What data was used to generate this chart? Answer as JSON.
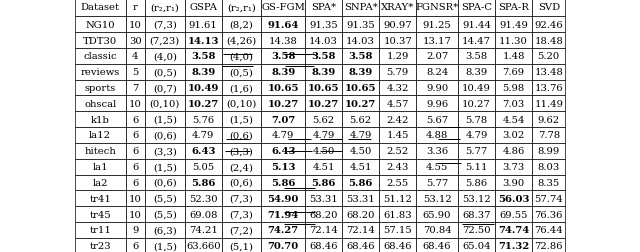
{
  "columns": [
    "Dataset",
    "r",
    "(r₂,r₁)",
    "GSPA",
    "(r₂,r₁)",
    "GS-FGM",
    "SPA*",
    "SNPA*",
    "XRAY*",
    "FGNSR*",
    "SPA-C",
    "SPA-R",
    "SVD"
  ],
  "rows": [
    [
      "NG10",
      "10",
      "(7,3)",
      "91.61",
      "(8,2)",
      "91.64",
      "91.35",
      "91.35",
      "90.97",
      "91.25",
      "91.44",
      "91.49",
      "92.46"
    ],
    [
      "TDT30",
      "30",
      "(7,23)",
      "14.13",
      "(4,26)",
      "14.38",
      "14.03",
      "14.03",
      "10.37",
      "13.17",
      "14.47",
      "11.30",
      "18.48"
    ],
    [
      "classic",
      "4",
      "(4,0)",
      "3.58",
      "(4,0)",
      "3.58",
      "3.58",
      "3.58",
      "1.29",
      "2.07",
      "3.58",
      "1.48",
      "5.20"
    ],
    [
      "reviews",
      "5",
      "(0,5)",
      "8.39",
      "(0,5)",
      "8.39",
      "8.39",
      "8.39",
      "5.79",
      "8.24",
      "8.39",
      "7.69",
      "13.48"
    ],
    [
      "sports",
      "7",
      "(0,7)",
      "10.49",
      "(1,6)",
      "10.65",
      "10.65",
      "10.65",
      "4.32",
      "9.90",
      "10.49",
      "5.98",
      "13.76"
    ],
    [
      "ohscal",
      "10",
      "(0,10)",
      "10.27",
      "(0,10)",
      "10.27",
      "10.27",
      "10.27",
      "4.57",
      "9.96",
      "10.27",
      "7.03",
      "11.49"
    ],
    [
      "k1b",
      "6",
      "(1,5)",
      "5.76",
      "(1,5)",
      "7.07",
      "5.62",
      "5.62",
      "2.42",
      "5.67",
      "5.78",
      "4.54",
      "9.62"
    ],
    [
      "la12",
      "6",
      "(0,6)",
      "4.79",
      "(0,6)",
      "4.79",
      "4.79",
      "4.79",
      "1.45",
      "4.88",
      "4.79",
      "3.02",
      "7.78"
    ],
    [
      "hitech",
      "6",
      "(3,3)",
      "6.43",
      "(3,3)",
      "6.43",
      "4.50",
      "4.50",
      "2.52",
      "3.36",
      "5.77",
      "4.86",
      "8.99"
    ],
    [
      "la1",
      "6",
      "(1,5)",
      "5.05",
      "(2,4)",
      "5.13",
      "4.51",
      "4.51",
      "2.43",
      "4.55",
      "5.11",
      "3.73",
      "8.03"
    ],
    [
      "la2",
      "6",
      "(0,6)",
      "5.86",
      "(0,6)",
      "5.86",
      "5.86",
      "5.86",
      "2.55",
      "5.77",
      "5.86",
      "3.90",
      "8.35"
    ],
    [
      "tr41",
      "10",
      "(5,5)",
      "52.30",
      "(7,3)",
      "54.90",
      "53.31",
      "53.31",
      "51.12",
      "53.12",
      "53.12",
      "56.03",
      "57.74"
    ],
    [
      "tr45",
      "10",
      "(5,5)",
      "69.08",
      "(7,3)",
      "71.94",
      "68.20",
      "68.20",
      "61.83",
      "65.90",
      "68.37",
      "69.55",
      "76.36"
    ],
    [
      "tr11",
      "9",
      "(6,3)",
      "74.21",
      "(7,2)",
      "74.27",
      "72.14",
      "72.14",
      "57.15",
      "70.84",
      "72.50",
      "74.74",
      "76.44"
    ],
    [
      "tr23",
      "6",
      "(1,5)",
      "63.660",
      "(5,1)",
      "70.70",
      "68.46",
      "68.46",
      "68.46",
      "68.46",
      "65.04",
      "71.32",
      "72.86"
    ]
  ],
  "bold_cells": {
    "0": [
      5
    ],
    "1": [
      3
    ],
    "2": [
      3,
      5,
      6,
      7
    ],
    "3": [
      3,
      5,
      6,
      7
    ],
    "4": [
      3,
      5,
      6,
      7
    ],
    "5": [
      3,
      5,
      6,
      7
    ],
    "6": [
      5
    ],
    "7": [],
    "8": [
      3,
      5
    ],
    "9": [
      5
    ],
    "10": [
      3,
      5,
      6,
      7
    ],
    "11": [
      5,
      11
    ],
    "12": [
      5
    ],
    "13": [
      5,
      11
    ],
    "14": [
      5,
      11
    ]
  },
  "underline_cells": {
    "0": [
      3,
      5
    ],
    "1": [
      3,
      5
    ],
    "2": [],
    "3": [],
    "4": [],
    "5": [],
    "6": [
      10
    ],
    "7": [
      3,
      5,
      6,
      7,
      10
    ],
    "8": [
      3,
      5,
      6
    ],
    "9": [
      10
    ],
    "10": [],
    "11": [
      5
    ],
    "12": [],
    "13": [
      5
    ],
    "14": [
      5,
      11
    ]
  },
  "font_size": 7.2,
  "figsize": [
    6.4,
    2.53
  ],
  "dpi": 100
}
